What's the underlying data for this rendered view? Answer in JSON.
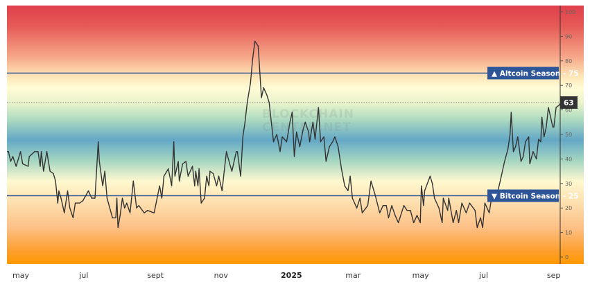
{
  "chart_data": {
    "type": "line",
    "title": "",
    "xlabel": "",
    "ylabel": "",
    "ylim": [
      0,
      100
    ],
    "y_ticks": [
      "0",
      "10",
      "20",
      "30",
      "40",
      "50",
      "60",
      "70",
      "80",
      "90",
      "100"
    ],
    "x_tick_labels": [
      {
        "date": "2024-05-01",
        "label": "may",
        "bold": false
      },
      {
        "date": "2024-07-01",
        "label": "jul",
        "bold": false
      },
      {
        "date": "2024-09-01",
        "label": "sept",
        "bold": false
      },
      {
        "date": "2024-11-01",
        "label": "nov",
        "bold": false
      },
      {
        "date": "2025-01-01",
        "label": "2025",
        "bold": true
      },
      {
        "date": "2025-03-01",
        "label": "mar",
        "bold": false
      },
      {
        "date": "2025-05-01",
        "label": "may",
        "bold": false
      },
      {
        "date": "2025-07-01",
        "label": "jul",
        "bold": false
      },
      {
        "date": "2025-09-01",
        "label": "sep",
        "bold": false
      }
    ],
    "grid": false,
    "background": "vertical gradient red (100) to yellow (70) to blue (50) to yellow (30) to orange (0)",
    "reference_lines": [
      {
        "value": 75,
        "label": "▲ Altcoin Season - 75",
        "color": "#2e5597"
      },
      {
        "value": 25,
        "label": "▼ Bitcoin Season - 25",
        "color": "#2e5597"
      }
    ],
    "current_value": {
      "value": 63,
      "label": "63",
      "color": "#333333"
    },
    "watermark": [
      "BLOCKCHAIN",
      "CENTER.NET"
    ],
    "series": [
      {
        "color": "#333333",
        "points": [
          [
            "2024-04-20",
            43
          ],
          [
            "2024-04-21",
            43
          ],
          [
            "2024-04-23",
            39
          ],
          [
            "2024-04-25",
            41
          ],
          [
            "2024-04-28",
            37
          ],
          [
            "2024-05-02",
            43
          ],
          [
            "2024-05-04",
            38
          ],
          [
            "2024-05-09",
            37
          ],
          [
            "2024-05-10",
            41
          ],
          [
            "2024-05-15",
            43
          ],
          [
            "2024-05-18",
            43
          ],
          [
            "2024-05-20",
            37
          ],
          [
            "2024-05-21",
            43
          ],
          [
            "2024-05-23",
            35
          ],
          [
            "2024-05-26",
            43
          ],
          [
            "2024-05-29",
            35
          ],
          [
            "2024-06-01",
            34
          ],
          [
            "2024-06-03",
            31
          ],
          [
            "2024-06-05",
            22
          ],
          [
            "2024-06-06",
            27
          ],
          [
            "2024-06-08",
            24
          ],
          [
            "2024-06-11",
            18
          ],
          [
            "2024-06-14",
            27
          ],
          [
            "2024-06-16",
            20
          ],
          [
            "2024-06-19",
            16
          ],
          [
            "2024-06-21",
            22
          ],
          [
            "2024-06-25",
            22
          ],
          [
            "2024-06-28",
            23
          ],
          [
            "2024-07-03",
            27
          ],
          [
            "2024-07-06",
            24
          ],
          [
            "2024-07-09",
            24
          ],
          [
            "2024-07-12",
            47
          ],
          [
            "2024-07-13",
            39
          ],
          [
            "2024-07-16",
            29
          ],
          [
            "2024-07-18",
            35
          ],
          [
            "2024-07-20",
            24
          ],
          [
            "2024-07-25",
            16
          ],
          [
            "2024-07-28",
            16
          ],
          [
            "2024-07-29",
            24
          ],
          [
            "2024-07-30",
            12
          ],
          [
            "2024-08-01",
            17
          ],
          [
            "2024-08-03",
            24
          ],
          [
            "2024-08-05",
            20
          ],
          [
            "2024-08-07",
            22
          ],
          [
            "2024-08-10",
            18
          ],
          [
            "2024-08-13",
            31
          ],
          [
            "2024-08-16",
            20
          ],
          [
            "2024-08-18",
            21
          ],
          [
            "2024-08-23",
            18
          ],
          [
            "2024-08-26",
            19
          ],
          [
            "2024-09-01",
            18
          ],
          [
            "2024-09-06",
            29
          ],
          [
            "2024-09-08",
            24
          ],
          [
            "2024-09-10",
            33
          ],
          [
            "2024-09-14",
            36
          ],
          [
            "2024-09-17",
            29
          ],
          [
            "2024-09-19",
            47
          ],
          [
            "2024-09-20",
            33
          ],
          [
            "2024-09-23",
            39
          ],
          [
            "2024-09-24",
            31
          ],
          [
            "2024-09-27",
            38
          ],
          [
            "2024-09-30",
            39
          ],
          [
            "2024-10-02",
            33
          ],
          [
            "2024-10-06",
            37
          ],
          [
            "2024-10-08",
            29
          ],
          [
            "2024-10-09",
            35
          ],
          [
            "2024-10-11",
            29
          ],
          [
            "2024-10-12",
            36
          ],
          [
            "2024-10-14",
            22
          ],
          [
            "2024-10-17",
            24
          ],
          [
            "2024-10-19",
            33
          ],
          [
            "2024-10-21",
            29
          ],
          [
            "2024-10-22",
            35
          ],
          [
            "2024-10-25",
            34
          ],
          [
            "2024-10-28",
            29
          ],
          [
            "2024-10-30",
            33
          ],
          [
            "2024-11-02",
            27
          ],
          [
            "2024-11-04",
            35
          ],
          [
            "2024-11-06",
            43
          ],
          [
            "2024-11-09",
            38
          ],
          [
            "2024-11-11",
            35
          ],
          [
            "2024-11-15",
            43
          ],
          [
            "2024-11-16",
            43
          ],
          [
            "2024-11-19",
            33
          ],
          [
            "2024-11-21",
            49
          ],
          [
            "2024-11-23",
            55
          ],
          [
            "2024-11-25",
            63
          ],
          [
            "2024-11-28",
            71
          ],
          [
            "2024-11-30",
            81
          ],
          [
            "2024-12-02",
            88
          ],
          [
            "2024-12-05",
            86
          ],
          [
            "2024-12-08",
            65
          ],
          [
            "2024-12-10",
            69
          ],
          [
            "2024-12-13",
            66
          ],
          [
            "2024-12-15",
            63
          ],
          [
            "2024-12-19",
            47
          ],
          [
            "2024-12-22",
            50
          ],
          [
            "2024-12-25",
            43
          ],
          [
            "2024-12-27",
            49
          ],
          [
            "2024-12-31",
            47
          ],
          [
            "2025-01-03",
            55
          ],
          [
            "2025-01-05",
            59
          ],
          [
            "2025-01-07",
            41
          ],
          [
            "2025-01-09",
            51
          ],
          [
            "2025-01-12",
            45
          ],
          [
            "2025-01-15",
            52
          ],
          [
            "2025-01-17",
            55
          ],
          [
            "2025-01-20",
            51
          ],
          [
            "2025-01-21",
            47
          ],
          [
            "2025-01-24",
            55
          ],
          [
            "2025-01-26",
            48
          ],
          [
            "2025-01-29",
            61
          ],
          [
            "2025-01-31",
            47
          ],
          [
            "2025-02-03",
            49
          ],
          [
            "2025-02-05",
            39
          ],
          [
            "2025-02-08",
            45
          ],
          [
            "2025-02-11",
            47
          ],
          [
            "2025-02-13",
            49
          ],
          [
            "2025-02-16",
            45
          ],
          [
            "2025-02-19",
            36
          ],
          [
            "2025-02-22",
            29
          ],
          [
            "2025-02-25",
            27
          ],
          [
            "2025-02-27",
            33
          ],
          [
            "2025-03-01",
            24
          ],
          [
            "2025-03-05",
            20
          ],
          [
            "2025-03-08",
            24
          ],
          [
            "2025-03-10",
            18
          ],
          [
            "2025-03-15",
            21
          ],
          [
            "2025-03-18",
            31
          ],
          [
            "2025-03-20",
            28
          ],
          [
            "2025-03-22",
            25
          ],
          [
            "2025-03-26",
            18
          ],
          [
            "2025-03-29",
            21
          ],
          [
            "2025-04-01",
            21
          ],
          [
            "2025-04-03",
            16
          ],
          [
            "2025-04-06",
            21
          ],
          [
            "2025-04-09",
            17
          ],
          [
            "2025-04-12",
            14
          ],
          [
            "2025-04-17",
            21
          ],
          [
            "2025-04-20",
            19
          ],
          [
            "2025-04-23",
            19
          ],
          [
            "2025-04-26",
            14
          ],
          [
            "2025-04-29",
            17
          ],
          [
            "2025-05-02",
            14
          ],
          [
            "2025-05-03",
            29
          ],
          [
            "2025-05-05",
            21
          ],
          [
            "2025-05-06",
            27
          ],
          [
            "2025-05-11",
            33
          ],
          [
            "2025-05-13",
            30
          ],
          [
            "2025-05-15",
            24
          ],
          [
            "2025-05-19",
            20
          ],
          [
            "2025-05-22",
            14
          ],
          [
            "2025-05-23",
            24
          ],
          [
            "2025-05-27",
            19
          ],
          [
            "2025-05-28",
            24
          ],
          [
            "2025-06-01",
            14
          ],
          [
            "2025-06-04",
            19
          ],
          [
            "2025-06-06",
            14
          ],
          [
            "2025-06-09",
            22
          ],
          [
            "2025-06-13",
            18
          ],
          [
            "2025-06-16",
            22
          ],
          [
            "2025-06-21",
            19
          ],
          [
            "2025-06-23",
            12
          ],
          [
            "2025-06-26",
            16
          ],
          [
            "2025-06-28",
            12
          ],
          [
            "2025-06-30",
            22
          ],
          [
            "2025-07-04",
            18
          ],
          [
            "2025-07-07",
            27
          ],
          [
            "2025-07-10",
            24
          ],
          [
            "2025-07-13",
            29
          ],
          [
            "2025-07-15",
            33
          ],
          [
            "2025-07-18",
            39
          ],
          [
            "2025-07-21",
            44
          ],
          [
            "2025-07-23",
            50
          ],
          [
            "2025-07-24",
            59
          ],
          [
            "2025-07-26",
            43
          ],
          [
            "2025-07-28",
            45
          ],
          [
            "2025-07-30",
            49
          ],
          [
            "2025-08-02",
            39
          ],
          [
            "2025-08-04",
            41
          ],
          [
            "2025-08-06",
            47
          ],
          [
            "2025-08-09",
            49
          ],
          [
            "2025-08-10",
            38
          ],
          [
            "2025-08-13",
            43
          ],
          [
            "2025-08-16",
            40
          ],
          [
            "2025-08-18",
            48
          ],
          [
            "2025-08-20",
            47
          ],
          [
            "2025-08-21",
            57
          ],
          [
            "2025-08-23",
            49
          ],
          [
            "2025-08-25",
            53
          ],
          [
            "2025-08-27",
            61
          ],
          [
            "2025-08-31",
            53
          ],
          [
            "2025-09-01",
            53
          ],
          [
            "2025-09-03",
            61
          ],
          [
            "2025-09-06",
            62
          ],
          [
            "2025-09-07",
            63
          ]
        ]
      }
    ]
  }
}
